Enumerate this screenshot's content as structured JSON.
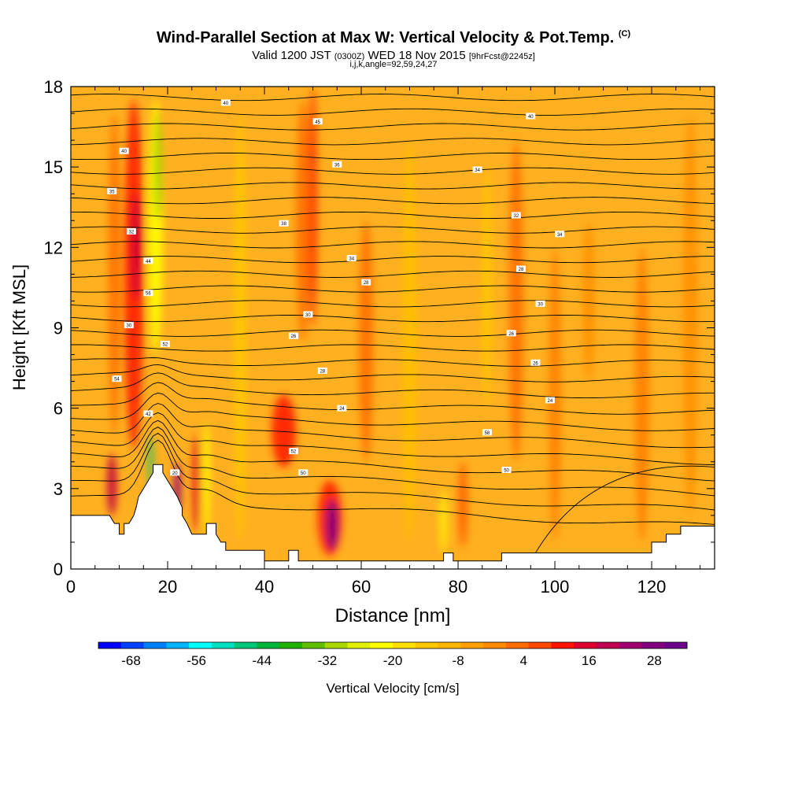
{
  "header": {
    "title": "Wind-Parallel Section at Max W: Vertical Velocity & Pot.Temp.",
    "copyright": "(C)",
    "valid_prefix": "Valid 1200 JST",
    "valid_z": "(0300Z)",
    "valid_date": "WED 18 Nov 2015",
    "forecast": "[9hrFcst@2245z]",
    "index_line": "i,j,k,angle=92,59,24,27"
  },
  "chart_data": {
    "type": "heatmap",
    "xlabel": "Distance [nm]",
    "ylabel": "Height [Kft MSL]",
    "xlim": [
      0,
      133
    ],
    "ylim": [
      0,
      18
    ],
    "x_ticks": [
      0,
      20,
      40,
      60,
      80,
      100,
      120
    ],
    "y_ticks": [
      0,
      3,
      6,
      9,
      12,
      15,
      18
    ],
    "colorbar": {
      "label": "Vertical Velocity [cm/s]",
      "tick_labels": [
        "-68",
        "-56",
        "-44",
        "-32",
        "-20",
        "-8",
        "4",
        "16",
        "28"
      ],
      "colors": [
        "#0000ff",
        "#0040ff",
        "#0080ff",
        "#00b4ff",
        "#00ffff",
        "#00e0c0",
        "#00c878",
        "#00b43c",
        "#20b000",
        "#60c000",
        "#a8d800",
        "#e0f000",
        "#ffff00",
        "#ffe000",
        "#ffc800",
        "#ffb400",
        "#ffa000",
        "#ff8c00",
        "#ff6c00",
        "#ff4800",
        "#ff1400",
        "#e00030",
        "#c00050",
        "#a00070",
        "#800080",
        "#6a008a"
      ]
    },
    "velocity_field": {
      "background": "#ffb020",
      "features": [
        {
          "x": 13,
          "y0": 4.5,
          "y1": 17.5,
          "w": 4,
          "color": "#ff2000"
        },
        {
          "x": 13.5,
          "y0": 10,
          "y1": 14,
          "w": 2.2,
          "color": "#d00030"
        },
        {
          "x": 17.5,
          "y0": 8,
          "y1": 17.5,
          "w": 3,
          "color": "#ffff00"
        },
        {
          "x": 18,
          "y0": 13,
          "y1": 17,
          "w": 1.6,
          "color": "#a0d000"
        },
        {
          "x": 16.5,
          "y0": 3,
          "y1": 5,
          "w": 1.2,
          "color": "#30c060"
        },
        {
          "x": 8.5,
          "y0": 2,
          "y1": 4.3,
          "w": 2,
          "color": "#c00040"
        },
        {
          "x": 22,
          "y0": 2,
          "y1": 4,
          "w": 1.5,
          "color": "#900070"
        },
        {
          "x": 28,
          "y0": 1.3,
          "y1": 5.5,
          "w": 1.4,
          "color": "#ffff00"
        },
        {
          "x": 26,
          "y0": 1.4,
          "y1": 5,
          "w": 1.5,
          "color": "#e00020"
        },
        {
          "x": 44,
          "y0": 3.8,
          "y1": 6.5,
          "w": 5,
          "color": "#ff2000"
        },
        {
          "x": 48,
          "y0": 8.5,
          "y1": 17.5,
          "w": 3,
          "color": "#ff7000"
        },
        {
          "x": 53.5,
          "y0": 0.5,
          "y1": 3.3,
          "w": 5,
          "color": "#ff2000"
        },
        {
          "x": 54,
          "y0": 0.7,
          "y1": 2.6,
          "w": 2.5,
          "color": "#800080"
        },
        {
          "x": 50,
          "y0": 9,
          "y1": 18,
          "w": 2,
          "color": "#ff4000"
        },
        {
          "x": 61,
          "y0": 4,
          "y1": 13,
          "w": 3,
          "color": "#ff7000"
        },
        {
          "x": 77,
          "y0": 0.6,
          "y1": 3,
          "w": 1.2,
          "color": "#ffff00"
        },
        {
          "x": 81,
          "y0": 0.8,
          "y1": 4,
          "w": 2,
          "color": "#ff6000"
        },
        {
          "x": 92,
          "y0": 4,
          "y1": 16,
          "w": 3,
          "color": "#ff7000"
        },
        {
          "x": 100,
          "y0": 1,
          "y1": 12,
          "w": 2.5,
          "color": "#ff8000"
        },
        {
          "x": 107,
          "y0": 7,
          "y1": 13,
          "w": 2.5,
          "color": "#ff9000"
        },
        {
          "x": 118,
          "y0": 1,
          "y1": 12,
          "w": 3,
          "color": "#ff8000"
        },
        {
          "x": 128,
          "y0": 2,
          "y1": 17,
          "w": 3,
          "color": "#ff9000"
        },
        {
          "x": 9,
          "y0": 5,
          "y1": 17,
          "w": 2.5,
          "color": "#ff7000"
        },
        {
          "x": 35,
          "y0": 1,
          "y1": 17,
          "w": 2.5,
          "color": "#ffc800"
        },
        {
          "x": 70,
          "y0": 1,
          "y1": 16,
          "w": 3,
          "color": "#ffc000"
        },
        {
          "x": 86,
          "y0": 6,
          "y1": 15,
          "w": 2,
          "color": "#ffc800"
        }
      ]
    },
    "terrain": [
      [
        0,
        1.6
      ],
      [
        0,
        2.0
      ],
      [
        8,
        2.0
      ],
      [
        9,
        1.7
      ],
      [
        10,
        1.7
      ],
      [
        10,
        1.3
      ],
      [
        11,
        1.3
      ],
      [
        11,
        1.7
      ],
      [
        12,
        1.7
      ],
      [
        13,
        2.0
      ],
      [
        13.5,
        2.3
      ],
      [
        14,
        2.7
      ],
      [
        15,
        3.0
      ],
      [
        16,
        3.3
      ],
      [
        17,
        3.6
      ],
      [
        17,
        3.9
      ],
      [
        19,
        3.9
      ],
      [
        19,
        3.6
      ],
      [
        20,
        3.3
      ],
      [
        21,
        3.0
      ],
      [
        22,
        2.7
      ],
      [
        23,
        2.3
      ],
      [
        23,
        2.0
      ],
      [
        24,
        1.7
      ],
      [
        25,
        1.3
      ],
      [
        28,
        1.3
      ],
      [
        28,
        1.7
      ],
      [
        30,
        1.7
      ],
      [
        30,
        1.3
      ],
      [
        31,
        1.0
      ],
      [
        32,
        1.0
      ],
      [
        32,
        0.7
      ],
      [
        40,
        0.7
      ],
      [
        40,
        0.3
      ],
      [
        45,
        0.3
      ],
      [
        45,
        0.7
      ],
      [
        47,
        0.7
      ],
      [
        47,
        0.3
      ],
      [
        77,
        0.3
      ],
      [
        77,
        0.6
      ],
      [
        79,
        0.6
      ],
      [
        79,
        0.3
      ],
      [
        89,
        0.3
      ],
      [
        89,
        0.6
      ],
      [
        111,
        0.6
      ],
      [
        111,
        0.6
      ],
      [
        120,
        0.6
      ],
      [
        120,
        1.0
      ],
      [
        123,
        1.0
      ],
      [
        123,
        1.3
      ],
      [
        126,
        1.3
      ],
      [
        126,
        1.6
      ],
      [
        133,
        1.6
      ],
      [
        133,
        0
      ],
      [
        0,
        0
      ]
    ],
    "isentrope_labels": [
      {
        "x": 32,
        "y": 17.4,
        "text": "40"
      },
      {
        "x": 51,
        "y": 16.7,
        "text": "45"
      },
      {
        "x": 95,
        "y": 16.9,
        "text": "40"
      },
      {
        "x": 11,
        "y": 15.6,
        "text": "40"
      },
      {
        "x": 55,
        "y": 15.1,
        "text": "36"
      },
      {
        "x": 84,
        "y": 14.9,
        "text": "34"
      },
      {
        "x": 8.5,
        "y": 14.1,
        "text": "35"
      },
      {
        "x": 92,
        "y": 13.2,
        "text": "32"
      },
      {
        "x": 44,
        "y": 12.9,
        "text": "38"
      },
      {
        "x": 12.5,
        "y": 12.6,
        "text": "32"
      },
      {
        "x": 101,
        "y": 12.5,
        "text": "34"
      },
      {
        "x": 58,
        "y": 11.6,
        "text": "34"
      },
      {
        "x": 16,
        "y": 11.5,
        "text": "44"
      },
      {
        "x": 93,
        "y": 11.2,
        "text": "28"
      },
      {
        "x": 61,
        "y": 10.7,
        "text": "28"
      },
      {
        "x": 16,
        "y": 10.3,
        "text": "56"
      },
      {
        "x": 97,
        "y": 9.9,
        "text": "30"
      },
      {
        "x": 49,
        "y": 9.5,
        "text": "30"
      },
      {
        "x": 12,
        "y": 9.1,
        "text": "30"
      },
      {
        "x": 91,
        "y": 8.8,
        "text": "26"
      },
      {
        "x": 46,
        "y": 8.7,
        "text": "26"
      },
      {
        "x": 19.5,
        "y": 8.4,
        "text": "52"
      },
      {
        "x": 96,
        "y": 7.7,
        "text": "26"
      },
      {
        "x": 52,
        "y": 7.4,
        "text": "28"
      },
      {
        "x": 9.5,
        "y": 7.1,
        "text": "54"
      },
      {
        "x": 99,
        "y": 6.3,
        "text": "24"
      },
      {
        "x": 56,
        "y": 6.0,
        "text": "24"
      },
      {
        "x": 16,
        "y": 5.8,
        "text": "42"
      },
      {
        "x": 86,
        "y": 5.1,
        "text": "58"
      },
      {
        "x": 46,
        "y": 4.4,
        "text": "52"
      },
      {
        "x": 21.5,
        "y": 3.6,
        "text": "20"
      },
      {
        "x": 48,
        "y": 3.6,
        "text": "50"
      },
      {
        "x": 90,
        "y": 3.7,
        "text": "50"
      }
    ]
  }
}
